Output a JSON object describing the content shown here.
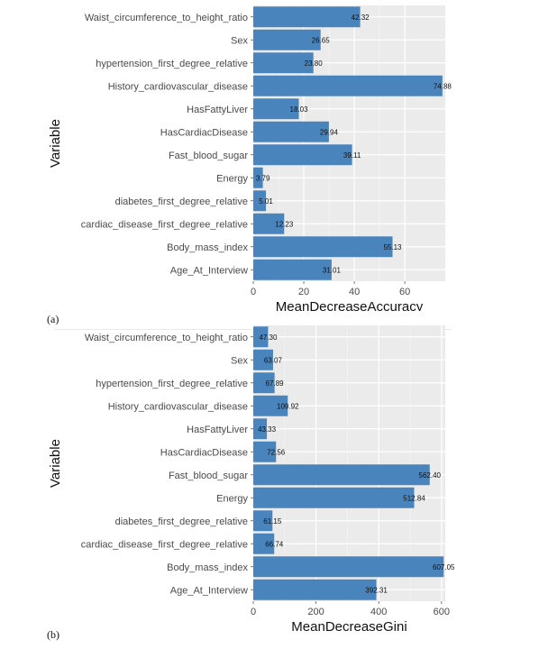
{
  "chart_data": [
    {
      "type": "bar",
      "orientation": "horizontal",
      "title": "",
      "xlabel": "MeanDecreaseAccuracy",
      "ylabel": "Variable",
      "xlim": [
        0,
        76
      ],
      "xticks": [
        0,
        20,
        40,
        60
      ],
      "grid": true,
      "bar_color": "#4a84bd",
      "panel_color": "#ebebeb",
      "panel_tag": "(a)",
      "categories": [
        "Waist_circumference_to_height_ratio",
        "Sex",
        "hypertension_first_degree_relative",
        "History_cardiovascular_disease",
        "HasFattyLiver",
        "HasCardiacDisease",
        "Fast_blood_sugar",
        "Energy",
        "diabetes_first_degree_relative",
        "cardiac_disease_first_degree_relative",
        "Body_mass_index",
        "Age_At_Interview"
      ],
      "values": [
        42.32,
        26.65,
        23.8,
        74.88,
        18.03,
        29.94,
        39.11,
        3.79,
        5.01,
        12.23,
        55.13,
        31.01
      ],
      "value_labels": [
        "42.32",
        "26.65",
        "23.80",
        "74.88",
        "18.03",
        "29.94",
        "39.11",
        "3.79",
        "5.01",
        "12.23",
        "55.13",
        "31.01"
      ]
    },
    {
      "type": "bar",
      "orientation": "horizontal",
      "title": "",
      "xlabel": "MeanDecreaseGini",
      "ylabel": "Variable",
      "xlim": [
        0,
        612
      ],
      "xticks": [
        0,
        200,
        400,
        600
      ],
      "grid": true,
      "bar_color": "#4a84bd",
      "panel_color": "#ebebeb",
      "panel_tag": "(b)",
      "categories": [
        "Waist_circumference_to_height_ratio",
        "Sex",
        "hypertension_first_degree_relative",
        "History_cardiovascular_disease",
        "HasFattyLiver",
        "HasCardiacDisease",
        "Fast_blood_sugar",
        "Energy",
        "diabetes_first_degree_relative",
        "cardiac_disease_first_degree_relative",
        "Body_mass_index",
        "Age_At_Interview"
      ],
      "values": [
        47.3,
        63.07,
        67.89,
        109.92,
        43.33,
        72.56,
        562.4,
        512.84,
        61.15,
        66.74,
        607.05,
        392.31
      ],
      "value_labels": [
        "47.30",
        "63.07",
        "67.89",
        "109.92",
        "43.33",
        "72.56",
        "562.40",
        "512.84",
        "61.15",
        "66.74",
        "607.05",
        "392.31"
      ]
    }
  ]
}
